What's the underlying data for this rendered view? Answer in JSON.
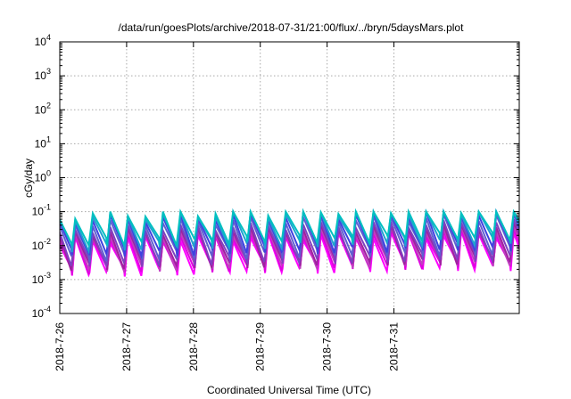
{
  "chart_data": {
    "type": "line",
    "title": "/data/run/goesPlots/archive/2018-07-31/21:00/flux/../bryn/5daysMars.plot",
    "xlabel": "Coordinated Universal Time (UTC)",
    "ylabel": "cGy/day",
    "y_scale": "log",
    "ylim": [
      0.0001,
      10000
    ],
    "y_ticks": [
      {
        "value": 0.0001,
        "base": "10",
        "exp": "-4"
      },
      {
        "value": 0.001,
        "base": "10",
        "exp": "-3"
      },
      {
        "value": 0.01,
        "base": "10",
        "exp": "-2"
      },
      {
        "value": 0.1,
        "base": "10",
        "exp": "-1"
      },
      {
        "value": 1,
        "base": "10",
        "exp": "0"
      },
      {
        "value": 10,
        "base": "10",
        "exp": "1"
      },
      {
        "value": 100,
        "base": "10",
        "exp": "2"
      },
      {
        "value": 1000,
        "base": "10",
        "exp": "3"
      },
      {
        "value": 10000,
        "base": "10",
        "exp": "4"
      }
    ],
    "xlim": [
      "2018-07-26T00:00",
      "2018-08-01T21:00"
    ],
    "x_ticks": [
      {
        "label": "2018-7-26",
        "date": "2018-07-26"
      },
      {
        "label": "2018-7-27",
        "date": "2018-07-27"
      },
      {
        "label": "2018-7-28",
        "date": "2018-07-28"
      },
      {
        "label": "2018-7-29",
        "date": "2018-07-29"
      },
      {
        "label": "2018-7-30",
        "date": "2018-07-30"
      },
      {
        "label": "2018-7-31",
        "date": "2018-07-31"
      }
    ],
    "grid": true,
    "oscillation_period_hours": 6.3,
    "series": [
      {
        "color": "#ff00ff",
        "low": 0.0016,
        "high": 0.014
      },
      {
        "color": "#e000e0",
        "low": 0.0019,
        "high": 0.017
      },
      {
        "color": "#c040c0",
        "low": 0.0022,
        "high": 0.02
      },
      {
        "color": "#a020a0",
        "low": 0.0025,
        "high": 0.024
      },
      {
        "color": "#8040c0",
        "low": 0.003,
        "high": 0.03
      },
      {
        "color": "#6060d0",
        "low": 0.0045,
        "high": 0.045
      },
      {
        "color": "#4040e0",
        "low": 0.006,
        "high": 0.06
      },
      {
        "color": "#20a0d0",
        "low": 0.009,
        "high": 0.07
      },
      {
        "color": "#00c0c0",
        "low": 0.012,
        "high": 0.08
      }
    ]
  }
}
